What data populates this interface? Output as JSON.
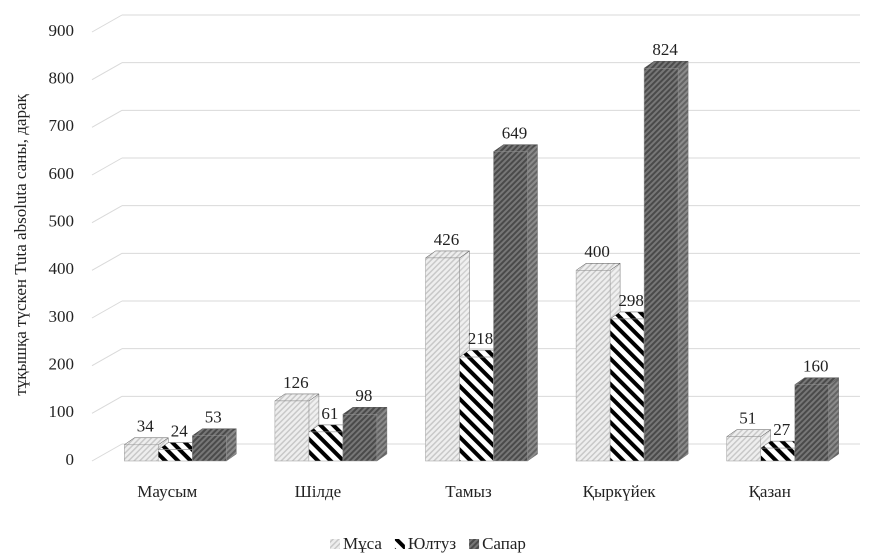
{
  "chart_data": {
    "type": "bar3d",
    "y_label": "тұқышқа түскен Tuta absoluta саны, дарақ",
    "categories": [
      "Маусым",
      "Шілде",
      "Тамыз",
      "Қыркүйек",
      "Қазан"
    ],
    "series": [
      {
        "name": "Мұса",
        "color": "#c8c8c8",
        "values": [
          34,
          126,
          426,
          400,
          51
        ]
      },
      {
        "name": "Юлтуз",
        "color": "#000000",
        "values": [
          24,
          61,
          218,
          298,
          27
        ]
      },
      {
        "name": "Сапар",
        "color": "#4a4a4a",
        "values": [
          53,
          98,
          649,
          824,
          160
        ]
      }
    ],
    "ylim": [
      0,
      900
    ],
    "yticks": [
      0,
      100,
      200,
      300,
      400,
      500,
      600,
      700,
      800,
      900
    ],
    "grid": true
  }
}
